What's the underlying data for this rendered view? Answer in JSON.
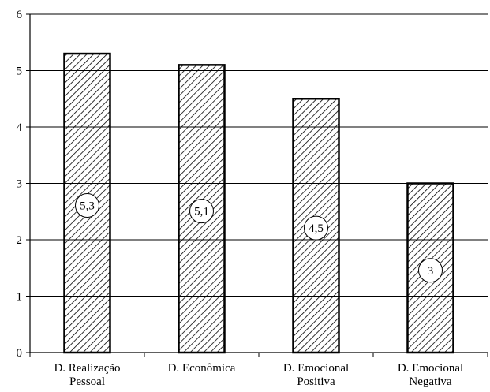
{
  "chart_data": {
    "type": "bar",
    "title": "",
    "xlabel": "",
    "ylabel": "",
    "ylim": [
      0,
      6
    ],
    "yticks": [
      0,
      1,
      2,
      3,
      4,
      5,
      6
    ],
    "ytick_labels": [
      "0",
      "1",
      "2",
      "3",
      "4",
      "5",
      "6"
    ],
    "grid": "horizontal",
    "categories": [
      [
        "D. Realização",
        "Pessoal"
      ],
      [
        "D. Econômica"
      ],
      [
        "D. Emocional",
        "Positiva"
      ],
      [
        "D. Emocional",
        "Negativa"
      ]
    ],
    "values": [
      5.3,
      5.1,
      4.5,
      3
    ],
    "data_labels": [
      "5,3",
      "5,1",
      "4,5",
      "3"
    ],
    "colors": {
      "bar_fill": "#ffffff",
      "hatch": "#000000",
      "axis": "#000000",
      "grid": "#000000"
    }
  }
}
